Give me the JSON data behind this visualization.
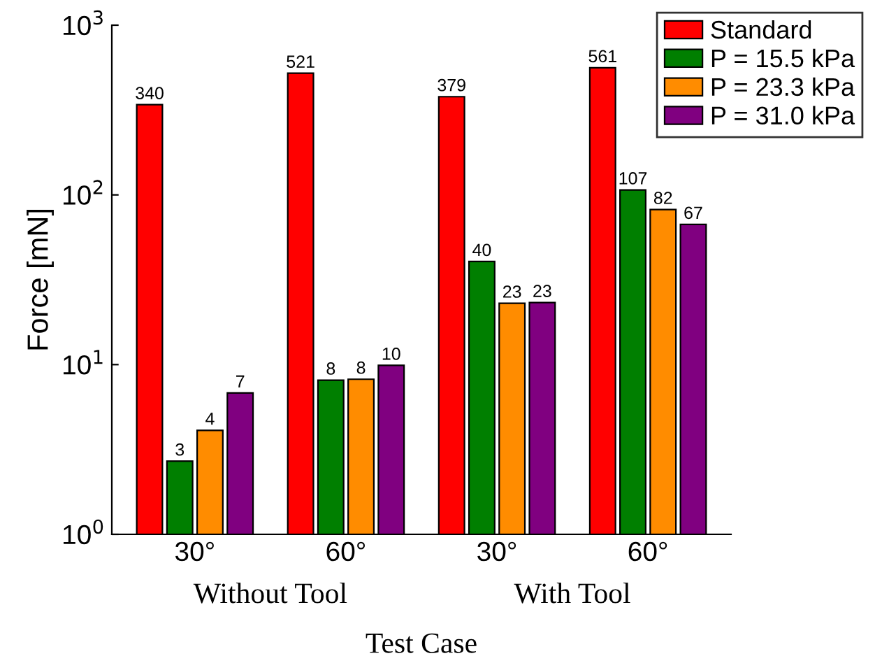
{
  "chart_data": {
    "type": "bar",
    "xlabel": "Test Case",
    "ylabel": "Force [mN]",
    "categories": [
      "30°",
      "60°",
      "30°",
      "60°"
    ],
    "annotations": [
      "Without Tool",
      "With Tool"
    ],
    "series": [
      {
        "name": "Standard",
        "color": "#ff0000",
        "values": [
          340,
          521,
          379,
          561
        ],
        "value_labels": [
          "340",
          "521",
          "379",
          "561"
        ]
      },
      {
        "name": "P = 15.5 kPa",
        "color": "#007f00",
        "values": [
          2.7,
          8.1,
          40.5,
          107
        ],
        "value_labels": [
          "3",
          "8",
          "40",
          "107"
        ]
      },
      {
        "name": "P = 23.3 kPa",
        "color": "#ff8c00",
        "values": [
          4.1,
          8.2,
          23,
          82
        ],
        "value_labels": [
          "4",
          "8",
          "23",
          "82"
        ]
      },
      {
        "name": "P = 31.0 kPa",
        "color": "#800080",
        "values": [
          6.8,
          9.9,
          23.2,
          67
        ],
        "value_labels": [
          "7",
          "10",
          "23",
          "67"
        ]
      }
    ],
    "log": "y",
    "ylim": [
      1,
      1000
    ],
    "yticks": [
      {
        "value": 1,
        "label": "10$^{0}$"
      },
      {
        "value": 10,
        "label": "10$^{1}$"
      },
      {
        "value": 100,
        "label": "10$^{2}$"
      },
      {
        "value": 1000,
        "label": "10$^{3}$"
      }
    ],
    "legend": "top right",
    "grid": false
  }
}
